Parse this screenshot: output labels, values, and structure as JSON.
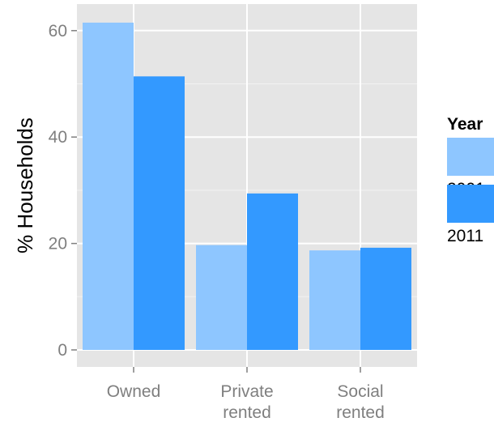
{
  "chart_data": {
    "type": "bar",
    "categories": [
      [
        "Owned"
      ],
      [
        "Private",
        "rented"
      ],
      [
        "Social",
        "rented"
      ]
    ],
    "series": [
      {
        "name": "2001",
        "values": [
          61.5,
          19.7,
          18.7
        ],
        "color": "#8ec6ff"
      },
      {
        "name": "2011",
        "values": [
          51.4,
          29.4,
          19.2
        ],
        "color": "#3399ff"
      }
    ],
    "ylabel": "% Households",
    "xlabel": "",
    "ylim": [
      0,
      65
    ],
    "yticks": [
      0,
      20,
      40,
      60
    ],
    "legend": {
      "title": "Year",
      "placement": "right"
    },
    "grid": true,
    "panel_color": "#e5e5e5",
    "grid_color": "#ffffff"
  }
}
